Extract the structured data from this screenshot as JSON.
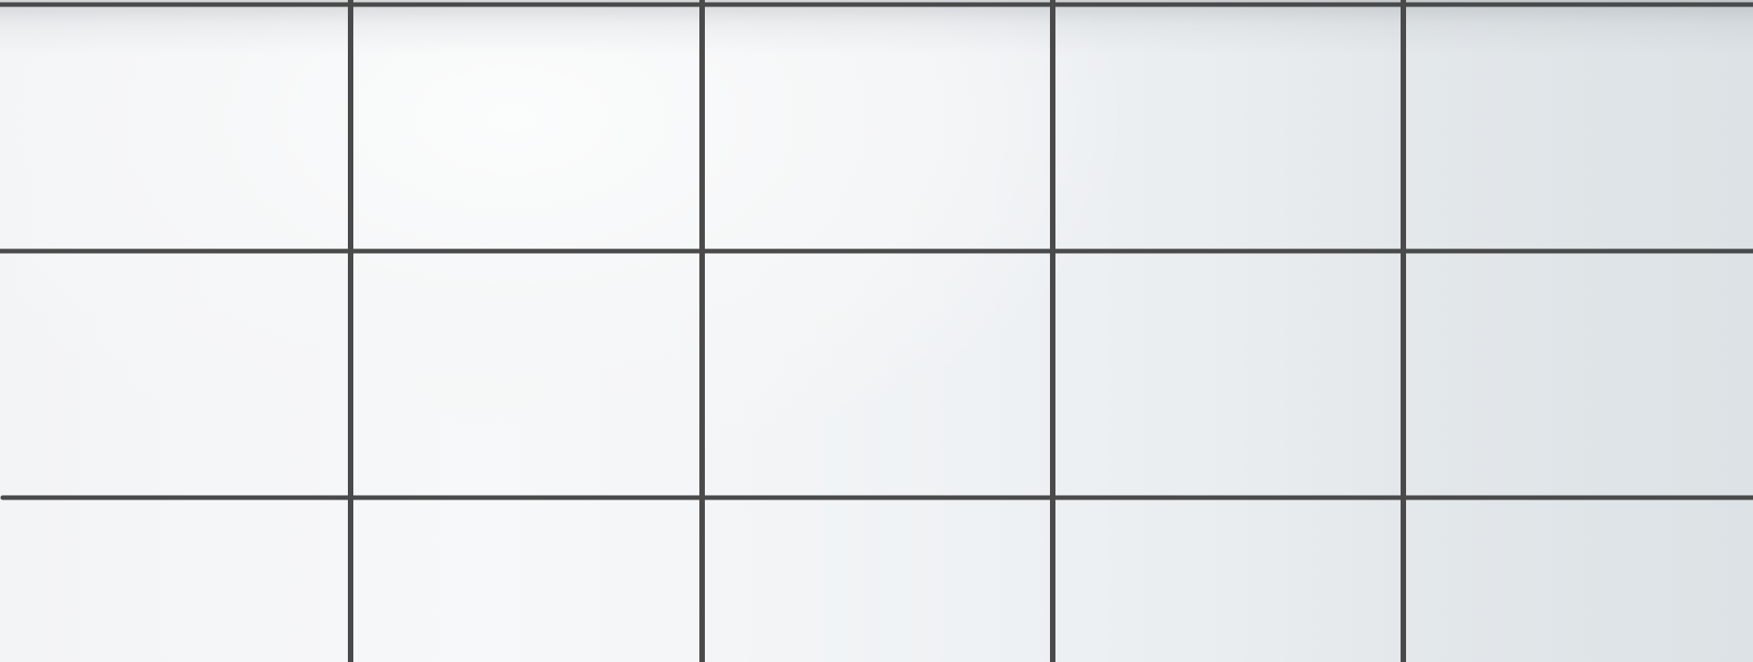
{
  "scene": {
    "description_free": true,
    "grid": {
      "columns": 5,
      "rows": 3
    },
    "colors": {
      "line": "#4a4a4a",
      "tile_light": "#f7f8f9",
      "tile_dark": "#e2e7ea"
    }
  }
}
